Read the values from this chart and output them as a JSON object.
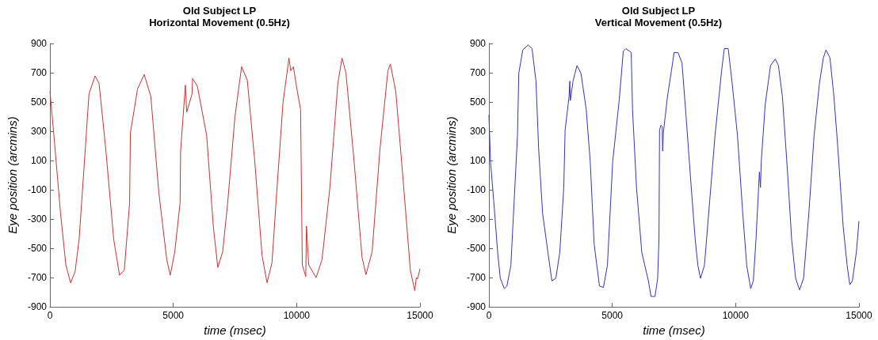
{
  "chart_data": [
    {
      "type": "line",
      "title": "Old Subject LP",
      "subtitle": "Horizontal Movement (0.5Hz)",
      "xlabel": "time (msec)",
      "ylabel": "Eye position (arcmins)",
      "xlim": [
        0,
        15000
      ],
      "ylim": [
        -900,
        900
      ],
      "xticks": [
        0,
        5000,
        10000,
        15000
      ],
      "yticks": [
        -900,
        -700,
        -500,
        -300,
        -100,
        100,
        300,
        500,
        700,
        900
      ],
      "marker": "none",
      "line_style": "solid",
      "series": [
        {
          "color": "#cc3333",
          "x": [
            0,
            161,
            430,
            646,
            840,
            1023,
            1184,
            1400,
            1583,
            1830,
            1992,
            2261,
            2584,
            2821,
            3015,
            3230,
            3262,
            3553,
            3822,
            4091,
            4414,
            4737,
            4877,
            5060,
            5276,
            5297,
            5491,
            5545,
            5760,
            5782,
            5976,
            6353,
            6622,
            6805,
            7000,
            7200,
            7500,
            7770,
            8000,
            8300,
            8600,
            8800,
            9000,
            9200,
            9450,
            9690,
            9760,
            9870,
            10000,
            10160,
            10230,
            10370,
            10400,
            10490,
            10790,
            11030,
            11350,
            11670,
            11840,
            12000,
            12330,
            12650,
            12810,
            13060,
            13380,
            13700,
            13800,
            14020,
            14340,
            14610,
            14790,
            14850,
            14900,
            15000
          ],
          "values": [
            573,
            272,
            -259,
            -613,
            -737,
            -657,
            -436,
            95,
            555,
            679,
            626,
            183,
            -436,
            -684,
            -649,
            -189,
            289,
            590,
            688,
            537,
            -118,
            -578,
            -684,
            -525,
            -189,
            165,
            616,
            431,
            555,
            661,
            608,
            272,
            -348,
            -631,
            -525,
            -200,
            400,
            741,
            650,
            100,
            -550,
            -735,
            -600,
            -100,
            500,
            800,
            714,
            740,
            600,
            449,
            -613,
            -693,
            -348,
            -613,
            -700,
            -576,
            -82,
            626,
            800,
            698,
            93,
            -560,
            -680,
            -523,
            183,
            714,
            760,
            571,
            -82,
            -650,
            -790,
            -700,
            -710,
            -640
          ]
        }
      ]
    },
    {
      "type": "line",
      "title": "Old Subject LP",
      "subtitle": "Vertical Movement (0.5Hz)",
      "xlabel": "time (msec)",
      "ylabel": "Eye position (arcmins)",
      "xlim": [
        0,
        15000
      ],
      "ylim": [
        -900,
        900
      ],
      "xticks": [
        0,
        5000,
        10000,
        15000
      ],
      "yticks": [
        -900,
        -700,
        -500,
        -300,
        -100,
        100,
        300,
        500,
        700,
        900
      ],
      "marker": "none",
      "line_style": "solid",
      "series": [
        {
          "color": "#3333cc",
          "x": [
            0,
            64,
            193,
            354,
            461,
            622,
            729,
            890,
            997,
            1158,
            1211,
            1372,
            1587,
            1747,
            1908,
            2015,
            2176,
            2391,
            2552,
            2713,
            2873,
            3034,
            3088,
            3248,
            3280,
            3302,
            3409,
            3570,
            3731,
            3945,
            4106,
            4267,
            4481,
            4642,
            4803,
            5017,
            5285,
            5446,
            5553,
            5768,
            5821,
            5982,
            6196,
            6464,
            6571,
            6732,
            6839,
            6893,
            6916,
            6969,
            7023,
            7044,
            7070,
            7237,
            7398,
            7505,
            7665,
            7826,
            7987,
            8201,
            8361,
            8469,
            8576,
            8736,
            8950,
            9165,
            9432,
            9540,
            9700,
            9861,
            10075,
            10289,
            10450,
            10610,
            10718,
            10825,
            10932,
            10964,
            11007,
            11039,
            11200,
            11414,
            11607,
            11735,
            11896,
            12110,
            12271,
            12432,
            12592,
            12753,
            12967,
            13181,
            13395,
            13556,
            13663,
            13824,
            13984,
            14145,
            14359,
            14520,
            14627,
            14734,
            14894,
            15000
          ],
          "values": [
            412,
            93,
            -173,
            -527,
            -705,
            -775,
            -758,
            -616,
            -261,
            271,
            696,
            856,
            890,
            865,
            643,
            182,
            -261,
            -527,
            -722,
            -705,
            -527,
            -84,
            306,
            537,
            643,
            510,
            643,
            749,
            696,
            448,
            93,
            -474,
            -758,
            -767,
            -616,
            93,
            519,
            847,
            865,
            838,
            448,
            -84,
            -527,
            -722,
            -829,
            -829,
            -705,
            -439,
            306,
            342,
            333,
            164,
            288,
            537,
            714,
            838,
            838,
            767,
            412,
            -84,
            -439,
            -616,
            -705,
            -616,
            -173,
            271,
            714,
            865,
            865,
            625,
            271,
            -261,
            -616,
            -775,
            -722,
            -439,
            -84,
            22,
            -84,
            93,
            484,
            749,
            794,
            749,
            537,
            5,
            -439,
            -705,
            -784,
            -705,
            -261,
            271,
            625,
            802,
            856,
            802,
            537,
            182,
            -350,
            -616,
            -749,
            -722,
            -527,
            -314
          ]
        }
      ]
    }
  ]
}
